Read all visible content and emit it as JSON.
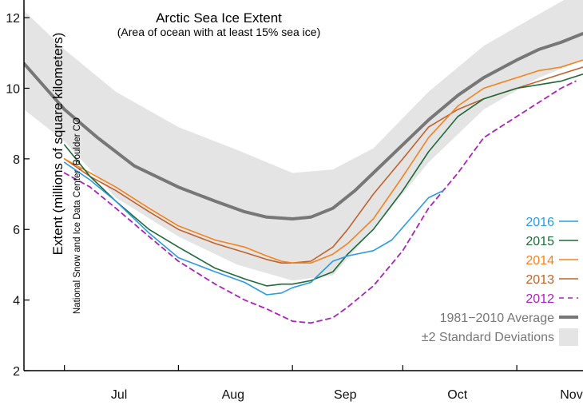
{
  "chart_data": {
    "type": "line",
    "title": "Arctic Sea Ice Extent",
    "subtitle": "(Area of ocean with at least 15% sea ice)",
    "ylabel": "Extent (millions of square kilometers)",
    "credit": "National Snow and Ice Data Center, Boulder CO",
    "xlabel": "",
    "xlim": [
      0,
      152
    ],
    "ylim": [
      2,
      12.5
    ],
    "x_units": "days since June 20",
    "yticks": [
      2,
      4,
      6,
      8,
      10,
      12
    ],
    "month_ticks": [
      {
        "label": "Jul",
        "x": 11
      },
      {
        "label": "Aug",
        "x": 42
      },
      {
        "label": "Sep",
        "x": 73
      },
      {
        "label": "Oct",
        "x": 103
      },
      {
        "label": "Nov",
        "x": 134
      }
    ],
    "std_band": {
      "name": "±2 Standard Deviations",
      "color": "#e4e4e4",
      "x": [
        0,
        11,
        25,
        42,
        58,
        73,
        84,
        95,
        110,
        125,
        140,
        152
      ],
      "upper": [
        12.2,
        11.1,
        9.9,
        8.9,
        8.25,
        7.6,
        7.7,
        8.3,
        9.9,
        11.2,
        12.1,
        12.8
      ],
      "lower": [
        9.4,
        8.5,
        6.9,
        5.8,
        5.0,
        4.55,
        4.7,
        6.0,
        7.9,
        9.4,
        10.3,
        10.8
      ]
    },
    "series": [
      {
        "name": "1981–2010 Average",
        "color": "#777777",
        "width": 4,
        "dash": "",
        "x": [
          0,
          11,
          20,
          30,
          42,
          52,
          60,
          66,
          73,
          78,
          84,
          90,
          95,
          103,
          110,
          118,
          125,
          134,
          140,
          146,
          152
        ],
        "y": [
          10.7,
          9.4,
          8.6,
          7.8,
          7.2,
          6.8,
          6.5,
          6.35,
          6.3,
          6.35,
          6.6,
          7.1,
          7.6,
          8.4,
          9.1,
          9.8,
          10.3,
          10.8,
          11.1,
          11.3,
          11.55
        ]
      },
      {
        "name": "2012",
        "color": "#aa22bb",
        "width": 1.8,
        "dash": "6,5",
        "x": [
          11,
          18,
          25,
          34,
          42,
          52,
          60,
          66,
          70,
          73,
          78,
          84,
          88,
          95,
          103,
          110,
          118,
          125,
          134,
          140,
          146,
          150
        ],
        "y": [
          7.6,
          7.2,
          6.6,
          5.8,
          5.1,
          4.45,
          4.0,
          3.75,
          3.55,
          3.4,
          3.35,
          3.5,
          3.8,
          4.4,
          5.4,
          6.6,
          7.6,
          8.6,
          9.2,
          9.6,
          10.0,
          10.2
        ]
      },
      {
        "name": "2013",
        "color": "#c0622e",
        "width": 1.6,
        "dash": "",
        "x": [
          11,
          18,
          25,
          34,
          42,
          52,
          60,
          66,
          70,
          73,
          78,
          84,
          88,
          95,
          103,
          110,
          118,
          125,
          134,
          140,
          146,
          152
        ],
        "y": [
          8.0,
          7.5,
          7.1,
          6.5,
          6.0,
          5.6,
          5.35,
          5.15,
          5.05,
          5.05,
          5.1,
          5.5,
          6.0,
          7.0,
          8.0,
          8.9,
          9.4,
          9.7,
          10.0,
          10.2,
          10.4,
          10.6
        ]
      },
      {
        "name": "2014",
        "color": "#f5821f",
        "width": 1.6,
        "dash": "",
        "x": [
          11,
          18,
          25,
          34,
          42,
          52,
          60,
          66,
          70,
          73,
          78,
          84,
          88,
          95,
          103,
          110,
          118,
          125,
          134,
          140,
          146,
          152
        ],
        "y": [
          8.0,
          7.6,
          7.2,
          6.6,
          6.1,
          5.7,
          5.5,
          5.25,
          5.1,
          5.05,
          5.05,
          5.3,
          5.6,
          6.3,
          7.5,
          8.6,
          9.5,
          10.0,
          10.3,
          10.5,
          10.6,
          10.8
        ]
      },
      {
        "name": "2015",
        "color": "#1e6a3a",
        "width": 1.6,
        "dash": "",
        "x": [
          11,
          18,
          25,
          34,
          42,
          52,
          60,
          66,
          70,
          73,
          78,
          84,
          88,
          95,
          103,
          110,
          118,
          125,
          134,
          140,
          146,
          152
        ],
        "y": [
          8.4,
          7.5,
          6.8,
          6.0,
          5.5,
          4.9,
          4.6,
          4.4,
          4.45,
          4.45,
          4.55,
          4.8,
          5.3,
          6.0,
          7.1,
          8.2,
          9.2,
          9.7,
          10.0,
          10.1,
          10.2,
          10.4
        ]
      },
      {
        "name": "2016",
        "color": "#2b9be3",
        "width": 1.6,
        "dash": "",
        "x": [
          11,
          18,
          25,
          34,
          42,
          52,
          60,
          66,
          70,
          73,
          78,
          84,
          88,
          95,
          100,
          105,
          110,
          114
        ],
        "y": [
          7.9,
          7.4,
          6.8,
          5.9,
          5.2,
          4.8,
          4.5,
          4.15,
          4.2,
          4.35,
          4.5,
          5.1,
          5.25,
          5.4,
          5.7,
          6.3,
          6.9,
          7.1
        ]
      }
    ],
    "legend": {
      "placement": "bottom-right",
      "entries": [
        {
          "label": "2016",
          "color": "#2b9be3",
          "style": "line"
        },
        {
          "label": "2015",
          "color": "#1e6a3a",
          "style": "line"
        },
        {
          "label": "2014",
          "color": "#f5821f",
          "style": "line"
        },
        {
          "label": "2013",
          "color": "#c0622e",
          "style": "line"
        },
        {
          "label": "2012",
          "color": "#aa22bb",
          "style": "dash"
        },
        {
          "label": "1981−2010 Average",
          "color": "#777777",
          "style": "thick"
        },
        {
          "label": "±2 Standard Deviations",
          "color": "#e4e4e4",
          "style": "band"
        }
      ]
    }
  }
}
